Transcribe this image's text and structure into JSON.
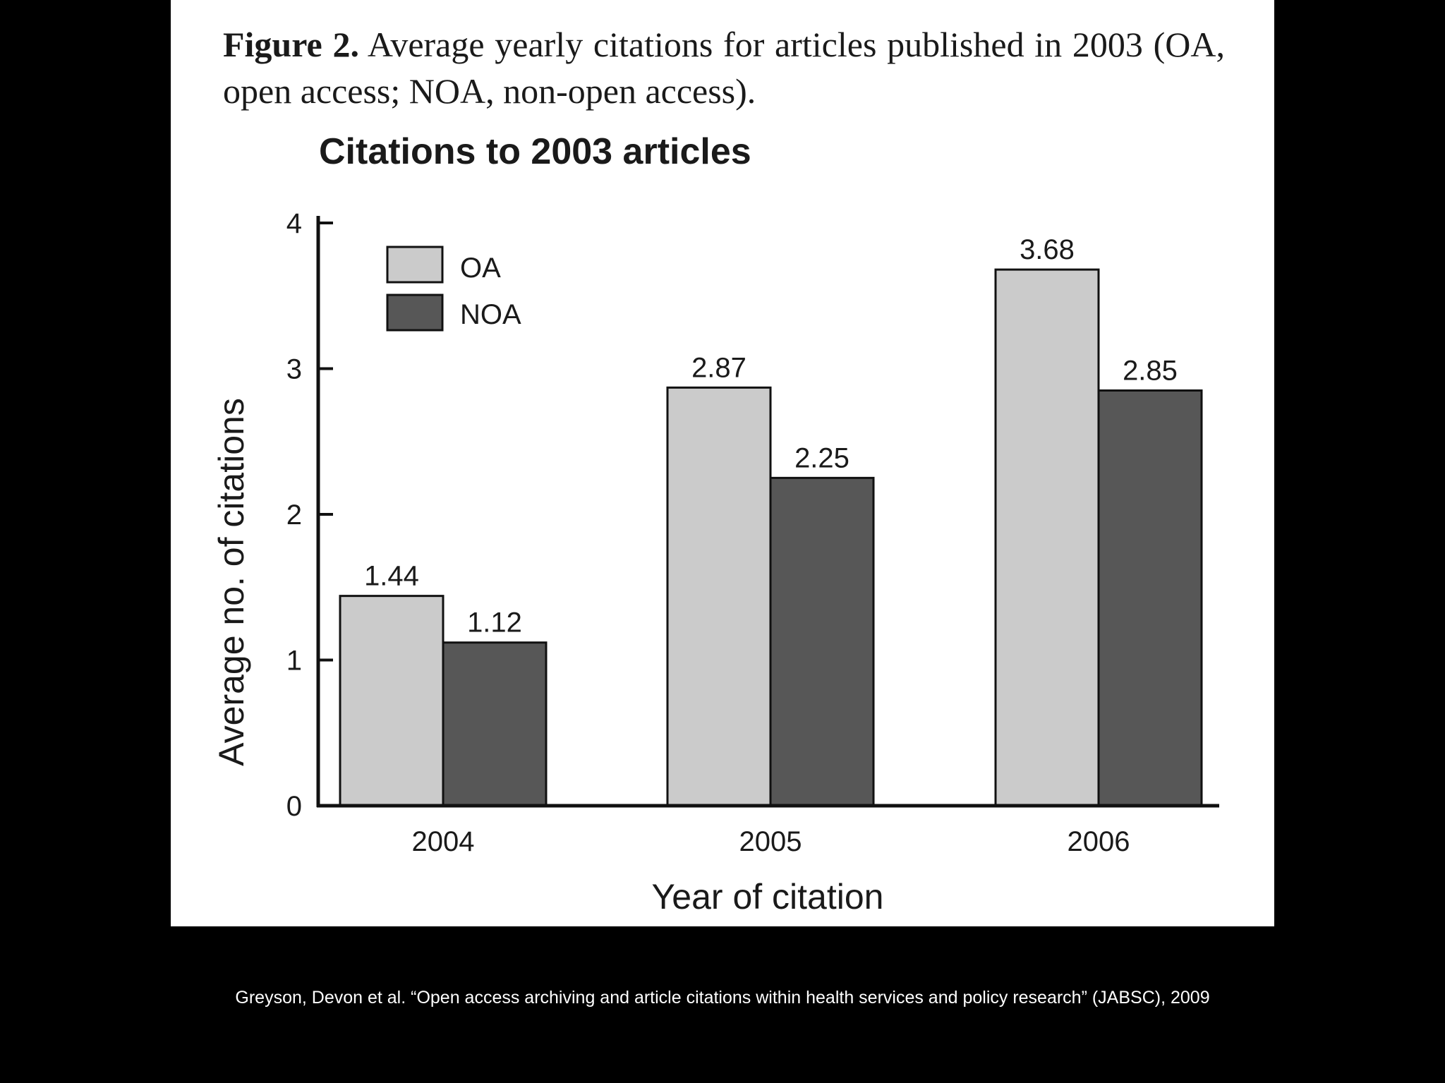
{
  "figure": {
    "label": "Figure 2.",
    "caption": "Average yearly citations for articles published in 2003 (OA, open access; NOA, non-open access)."
  },
  "colors": {
    "background": "#000000",
    "panel": "#ffffff",
    "oa_fill": "#cbcbcb",
    "noa_fill": "#575757",
    "axis": "#111111"
  },
  "chart_data": {
    "type": "bar",
    "title": "Citations to 2003 articles",
    "xlabel": "Year of citation",
    "ylabel": "Average no. of citations",
    "categories": [
      "2004",
      "2005",
      "2006"
    ],
    "series": [
      {
        "name": "OA",
        "values": [
          1.44,
          2.87,
          3.68
        ]
      },
      {
        "name": "NOA",
        "values": [
          1.12,
          2.25,
          2.85
        ]
      }
    ],
    "value_labels": [
      [
        "1.44",
        "2.87",
        "3.68"
      ],
      [
        "1.12",
        "2.25",
        "2.85"
      ]
    ],
    "ylim": [
      0,
      4
    ],
    "yticks": [
      "0",
      "1",
      "2",
      "3",
      "4"
    ],
    "grid": false,
    "legend_position": "top-left"
  },
  "footer": {
    "citation": "Greyson, Devon et al. “Open access archiving and article citations within health services and policy research” (JABSC), 2009"
  }
}
